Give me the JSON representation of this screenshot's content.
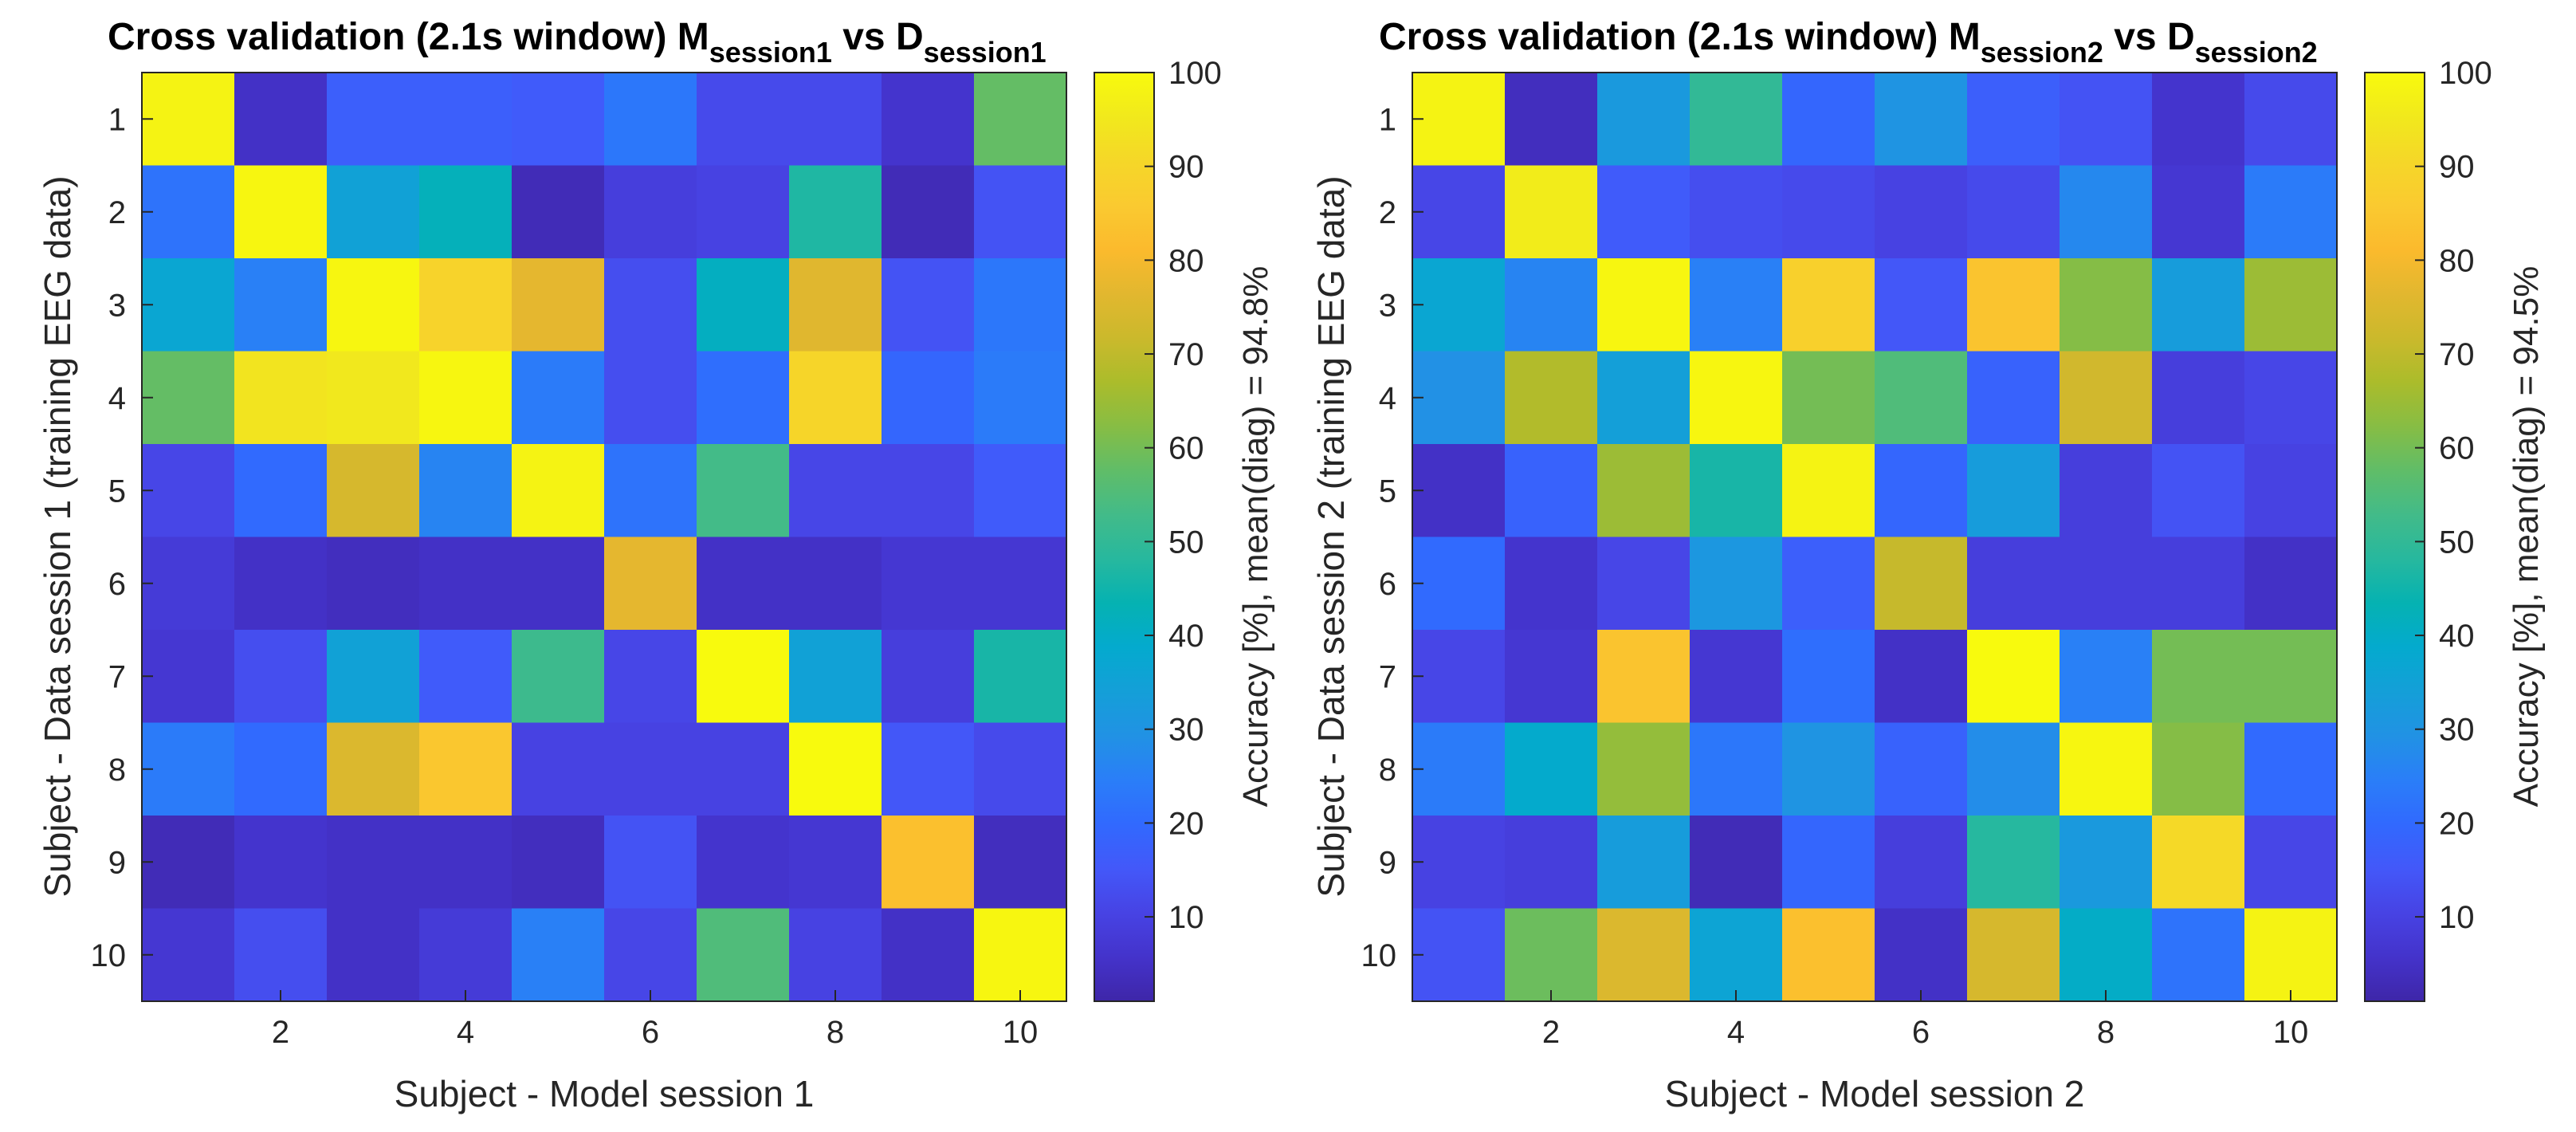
{
  "colormap": [
    "#3e26a8",
    "#4433cb",
    "#4743e4",
    "#4358f9",
    "#3169fe",
    "#2a7ef8",
    "#2192e4",
    "#149fd8",
    "#04aace",
    "#05b2b2",
    "#27b89e",
    "#42bb89",
    "#60bd68",
    "#87bd44",
    "#abbc2b",
    "#cbb92c",
    "#e2b72f",
    "#fbba2d",
    "#faca30",
    "#f5d728",
    "#f1e91c",
    "#f8fa0d"
  ],
  "chart_data": [
    {
      "type": "heatmap",
      "title_prefix": "Cross validation (2.1s window) M",
      "title_sub1": "session1",
      "title_mid": " vs D",
      "title_sub2": "session1",
      "xlabel": "Subject - Model session 1",
      "ylabel": "Subject - Data session 1 (training EEG data)",
      "colorbar_label": "Accuracy [%],  mean(diag) = 94.8%",
      "x_ticks": [
        "2",
        "4",
        "6",
        "8",
        "10"
      ],
      "y_ticks": [
        "1",
        "2",
        "3",
        "4",
        "5",
        "6",
        "7",
        "8",
        "9",
        "10"
      ],
      "colorbar_ticks": [
        "10",
        "20",
        "30",
        "40",
        "50",
        "60",
        "70",
        "80",
        "90",
        "100"
      ],
      "clim": [
        1,
        100
      ],
      "mean_diag": 94.8,
      "matrix": [
        [
          98,
          5,
          17,
          17,
          16,
          23,
          12,
          12,
          6,
          58
        ],
        [
          22,
          99,
          35,
          42,
          3,
          9,
          10,
          47,
          3,
          14
        ],
        [
          37,
          25,
          99,
          89,
          77,
          13,
          41,
          76,
          14,
          23
        ],
        [
          58,
          94,
          95,
          99,
          24,
          13,
          21,
          90,
          19,
          24
        ],
        [
          11,
          20,
          74,
          26,
          98,
          22,
          53,
          11,
          11,
          16
        ],
        [
          8,
          5,
          4,
          5,
          5,
          77,
          5,
          5,
          7,
          7
        ],
        [
          7,
          13,
          35,
          16,
          52,
          11,
          100,
          35,
          9,
          46
        ],
        [
          24,
          20,
          75,
          85,
          10,
          10,
          10,
          100,
          15,
          12
        ],
        [
          3,
          6,
          5,
          5,
          4,
          14,
          6,
          7,
          83,
          4
        ],
        [
          7,
          13,
          5,
          8,
          25,
          11,
          55,
          10,
          5,
          99
        ]
      ]
    },
    {
      "type": "heatmap",
      "title_prefix": "Cross validation (2.1s window) M",
      "title_sub1": "session2",
      "title_mid": " vs D",
      "title_sub2": "session2",
      "xlabel": "Subject - Model session 2",
      "ylabel": "Subject - Data session 2 (training EEG data)",
      "colorbar_label": "Accuracy [%],  mean(diag) = 94.5%",
      "x_ticks": [
        "2",
        "4",
        "6",
        "8",
        "10"
      ],
      "y_ticks": [
        "1",
        "2",
        "3",
        "4",
        "5",
        "6",
        "7",
        "8",
        "9",
        "10"
      ],
      "colorbar_ticks": [
        "10",
        "20",
        "30",
        "40",
        "50",
        "60",
        "70",
        "80",
        "90",
        "100"
      ],
      "clim": [
        1,
        100
      ],
      "mean_diag": 94.5,
      "matrix": [
        [
          98,
          4,
          32,
          50,
          19,
          30,
          17,
          14,
          6,
          12
        ],
        [
          11,
          96,
          16,
          13,
          12,
          10,
          12,
          27,
          7,
          24
        ],
        [
          37,
          26,
          99,
          25,
          88,
          15,
          84,
          62,
          33,
          65
        ],
        [
          29,
          68,
          34,
          99,
          60,
          55,
          18,
          73,
          9,
          11
        ],
        [
          5,
          18,
          65,
          46,
          98,
          19,
          33,
          9,
          14,
          10
        ],
        [
          20,
          6,
          11,
          31,
          17,
          71,
          9,
          9,
          9,
          5
        ],
        [
          11,
          7,
          84,
          7,
          21,
          5,
          100,
          25,
          60,
          60
        ],
        [
          24,
          39,
          64,
          23,
          30,
          18,
          28,
          99,
          62,
          20
        ],
        [
          10,
          9,
          33,
          3,
          19,
          9,
          48,
          32,
          91,
          11
        ],
        [
          14,
          59,
          75,
          36,
          83,
          5,
          74,
          40,
          22,
          98
        ]
      ]
    }
  ]
}
